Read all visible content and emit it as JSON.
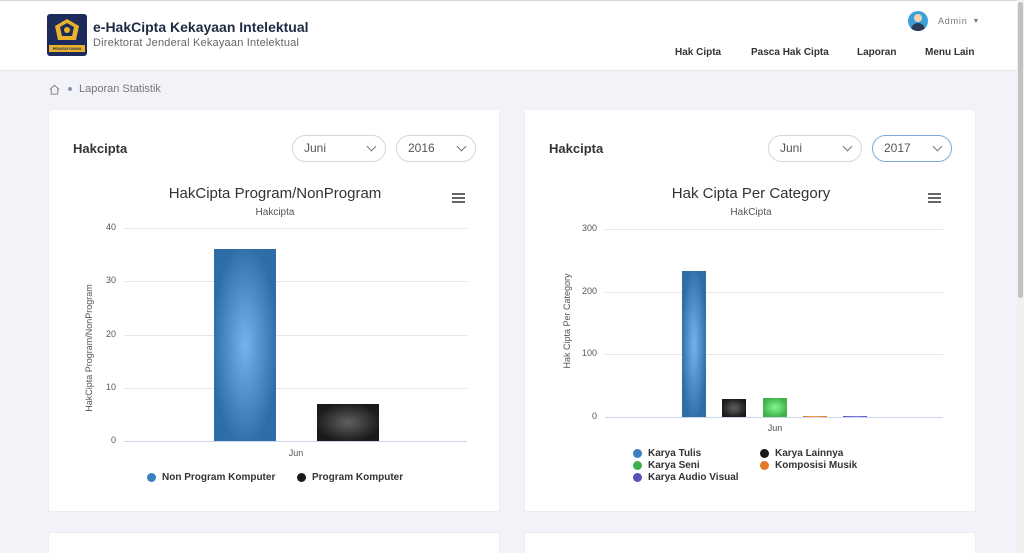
{
  "header": {
    "logo_band": "PENGAYOMAN",
    "title": "e-HakCipta Kekayaan Intelektual",
    "subtitle": "Direktorat Jenderal Kekayaan Intelektual",
    "user": "Admin",
    "nav": [
      "Hak Cipta",
      "Pasca Hak Cipta",
      "Laporan",
      "Menu Lain"
    ]
  },
  "breadcrumb": {
    "current": "Laporan Statistik"
  },
  "left_card": {
    "title": "Hakcipta",
    "month": "Juni",
    "year": "2016"
  },
  "right_card": {
    "title": "Hakcipta",
    "month": "Juni",
    "year": "2017"
  },
  "chart_data": [
    {
      "type": "bar",
      "title": "HakCipta Program/NonProgram",
      "subtitle": "Hakcipta",
      "ylabel": "HakCipta Program/NonProgram",
      "categories": [
        "Jun"
      ],
      "ylim": [
        0,
        40
      ],
      "yticks": [
        "0",
        "10",
        "20",
        "30",
        "40"
      ],
      "series": [
        {
          "name": "Non Program Komputer",
          "values": [
            36
          ],
          "color": "#2f6da8"
        },
        {
          "name": "Program Komputer",
          "values": [
            7
          ],
          "color": "#1a1a1a"
        }
      ],
      "legend": "bottom"
    },
    {
      "type": "bar",
      "title": "Hak Cipta Per Category",
      "subtitle": "HakCipta",
      "ylabel": "Hak Cipta Per Category",
      "categories": [
        "Jun"
      ],
      "ylim": [
        0,
        300
      ],
      "yticks": [
        "0",
        "100",
        "200",
        "300"
      ],
      "series": [
        {
          "name": "Karya Tulis",
          "values": [
            233
          ],
          "color": "#2f6da8"
        },
        {
          "name": "Karya Lainnya",
          "values": [
            29
          ],
          "color": "#1a1a1a"
        },
        {
          "name": "Karya Seni",
          "values": [
            30
          ],
          "color": "#3fb14a"
        },
        {
          "name": "Komposisi Musik",
          "values": [
            1
          ],
          "color": "#e07a2a"
        },
        {
          "name": "Karya Audio Visual",
          "values": [
            1
          ],
          "color": "#5b52b8"
        }
      ],
      "legend": "bottom"
    }
  ]
}
